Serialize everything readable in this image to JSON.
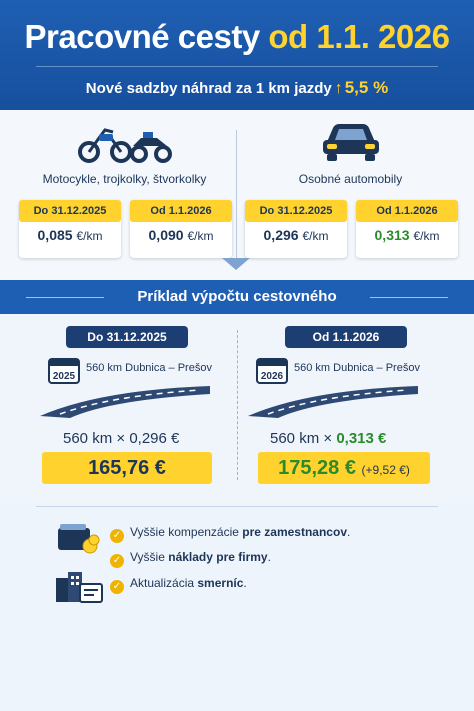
{
  "header": {
    "title_main": "Pracovné cesty",
    "title_accent": "od 1.1. 2026",
    "subtitle_text": "Nové sadzby náhrad za 1 km jazdy",
    "subtitle_increase": "5,5 %"
  },
  "rates": {
    "left": {
      "icon": "motorcycle-icon",
      "label": "Motocykle, trojkolky, štvorkolky",
      "before": {
        "tag": "Do 31.12.2025",
        "value": "0,085",
        "unit": "€/km"
      },
      "after": {
        "tag": "Od 1.1.2026",
        "value": "0,090",
        "unit": "€/km"
      }
    },
    "right": {
      "icon": "car-icon",
      "label": "Osobné automobily",
      "before": {
        "tag": "Do 31.12.2025",
        "value": "0,296",
        "unit": "€/km"
      },
      "after": {
        "tag": "Od 1.1.2026",
        "value": "0,313",
        "unit": "€/km"
      }
    }
  },
  "example": {
    "title": "Príklad výpočtu cestovného",
    "left": {
      "period": "Do 31.12.2025",
      "year": "2025",
      "route": "560 km Dubnica – Prešov",
      "km": "560 km",
      "times": "×",
      "rate": "0,296 €",
      "result": "165,76 €"
    },
    "right": {
      "period": "Od 1.1.2026",
      "year": "2026",
      "route": "560 km Dubnica – Prešov",
      "km": "560 km",
      "times": "×",
      "rate": "0,313 €",
      "result": "175,28 €",
      "delta": "(+9,52 €)"
    }
  },
  "bullets": [
    {
      "pre": "Vyššie kompenzácie ",
      "bold": "pre zamestnancov",
      "post": "."
    },
    {
      "pre": "Vyššie ",
      "bold": "náklady pre firmy",
      "post": "."
    },
    {
      "pre": "Aktualizácia ",
      "bold": "smerníc",
      "post": "."
    }
  ],
  "colors": {
    "blue": "#1f5fb3",
    "navy": "#1d3e73",
    "yellow": "#ffd22e",
    "green": "#2b8a2b"
  }
}
